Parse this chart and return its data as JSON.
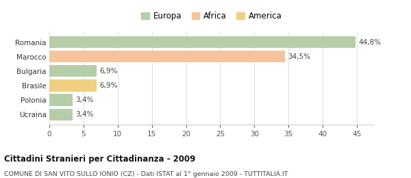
{
  "categories": [
    "Romania",
    "Marocco",
    "Bulgaria",
    "Brasile",
    "Polonia",
    "Ucraina"
  ],
  "values": [
    44.8,
    34.5,
    6.9,
    6.9,
    3.4,
    3.4
  ],
  "colors": [
    "#b5cea8",
    "#f5c49a",
    "#b5cea8",
    "#f0d080",
    "#b5cea8",
    "#b5cea8"
  ],
  "labels": [
    "44,8%",
    "34,5%",
    "6,9%",
    "6,9%",
    "3,4%",
    "3,4%"
  ],
  "legend": [
    {
      "label": "Europa",
      "color": "#b5cea8"
    },
    {
      "label": "Africa",
      "color": "#f5c49a"
    },
    {
      "label": "America",
      "color": "#f0d080"
    }
  ],
  "title": "Cittadini Stranieri per Cittadinanza - 2009",
  "subtitle": "COMUNE DI SAN VITO SULLO IONIO (CZ) - Dati ISTAT al 1° gennaio 2009 - TUTTITALIA.IT",
  "xlim": [
    0,
    47.5
  ],
  "xticks": [
    0,
    5,
    10,
    15,
    20,
    25,
    30,
    35,
    40,
    45
  ],
  "background_color": "#ffffff",
  "grid_color": "#e0e0e0"
}
